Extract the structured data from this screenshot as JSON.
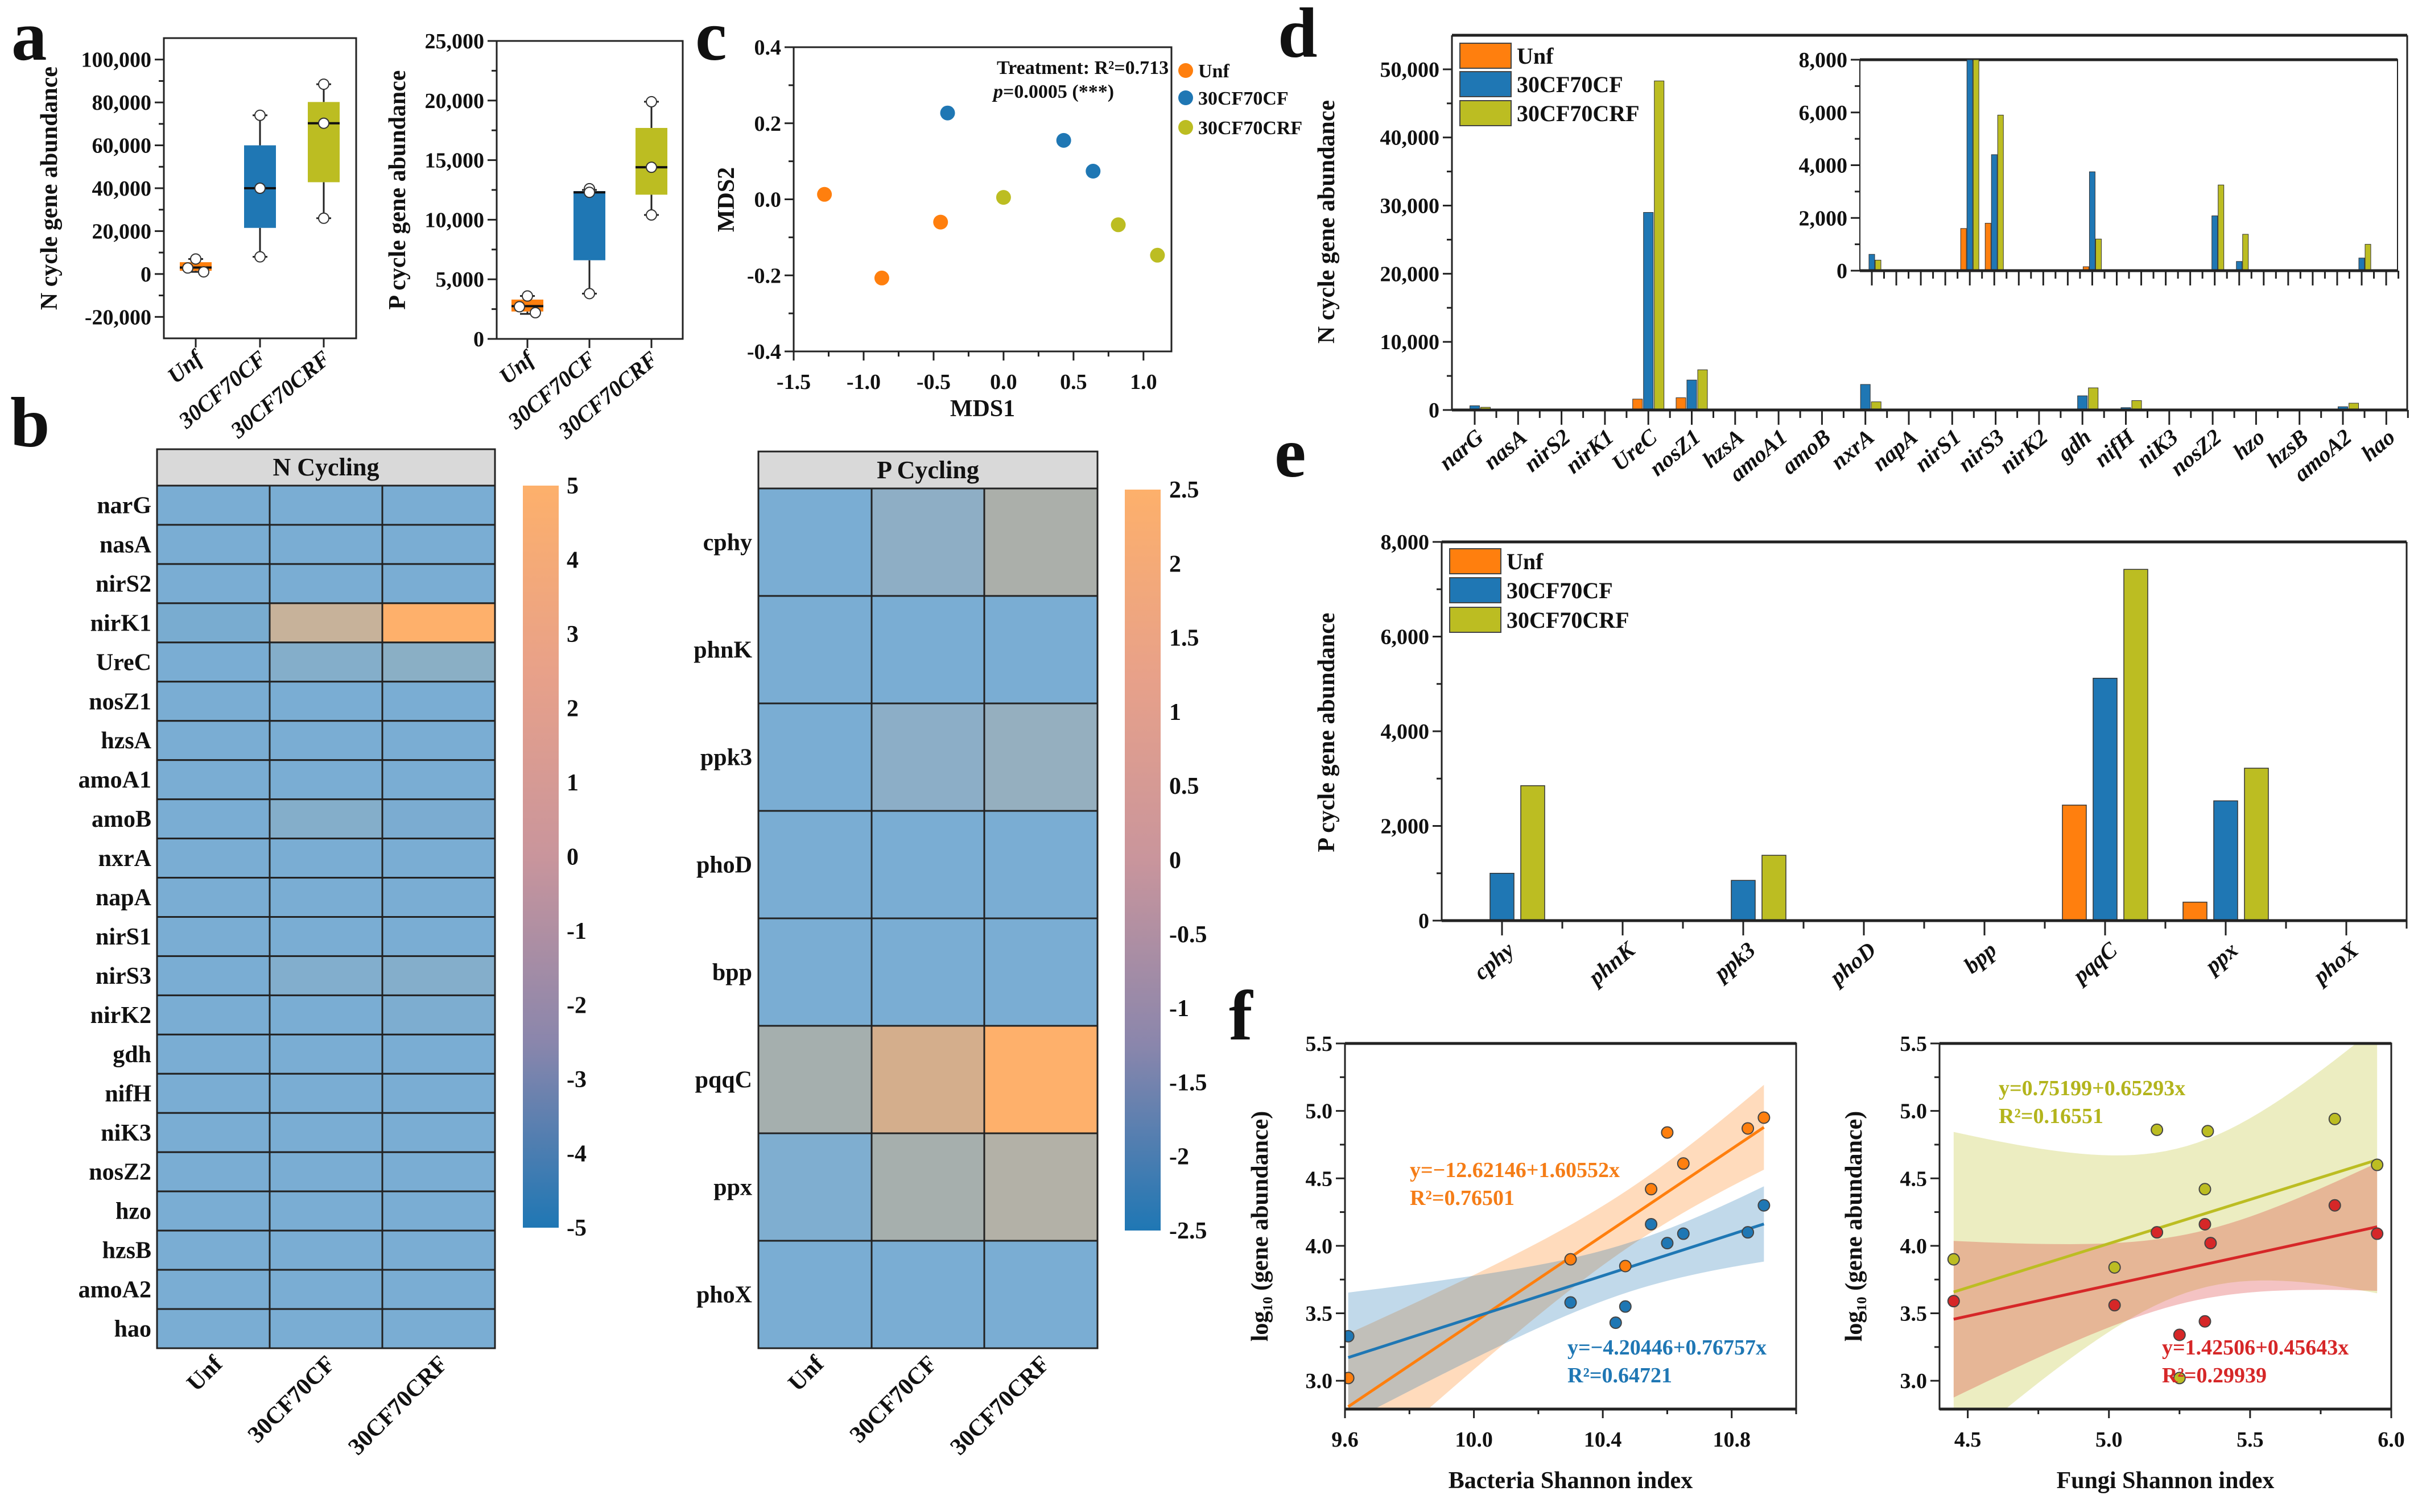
{
  "panel_letters": {
    "a": "a",
    "b": "b",
    "c": "c",
    "d": "d",
    "e": "e",
    "f": "f"
  },
  "colors": {
    "Unf": "#ff7f0e",
    "30CF70CF": "#1f77b4",
    "30CF70CRF": "#bcbd22",
    "fungi_red": "#d62728"
  },
  "chart_data": [
    {
      "id": "a_N",
      "panel": "a",
      "type": "box",
      "ylabel": "N cycle gene abundance",
      "categories": [
        "Unf",
        "30CF70CF",
        "30CF70CRF"
      ],
      "ylim": [
        -30000,
        110000
      ],
      "yticks": [
        -20000,
        0,
        20000,
        40000,
        60000,
        80000,
        100000
      ],
      "ytick_labels": [
        "-20,000",
        "0",
        "20,000",
        "40,000",
        "60,000",
        "80,000",
        "100,000"
      ],
      "boxes": [
        {
          "q1": 1500,
          "median": 3000,
          "q3": 5500,
          "whisker_low": 1000,
          "whisker_high": 7000,
          "points": [
            7000,
            2800,
            1000
          ]
        },
        {
          "q1": 21500,
          "median": 40000,
          "q3": 60000,
          "whisker_low": 8000,
          "whisker_high": 74000,
          "points": [
            74000,
            40000,
            8000
          ]
        },
        {
          "q1": 42800,
          "median": 70300,
          "q3": 80200,
          "whisker_low": 26000,
          "whisker_high": 88500,
          "points": [
            88500,
            70300,
            26000
          ]
        }
      ]
    },
    {
      "id": "a_P",
      "panel": "a",
      "type": "box",
      "ylabel": "P cycle gene abundance",
      "categories": [
        "Unf",
        "30CF70CF",
        "30CF70CRF"
      ],
      "ylim": [
        0,
        25000
      ],
      "yticks": [
        0,
        5000,
        10000,
        15000,
        20000,
        25000
      ],
      "ytick_labels": [
        "0",
        "5,000",
        "10,000",
        "15,000",
        "20,000",
        "25,000"
      ],
      "boxes": [
        {
          "q1": 2300,
          "median": 2750,
          "q3": 3300,
          "whisker_low": 2100,
          "whisker_high": 3600,
          "points": [
            3600,
            2700,
            2200
          ]
        },
        {
          "q1": 6600,
          "median": 12300,
          "q3": 12400,
          "whisker_low": 3800,
          "whisker_high": 12500,
          "points": [
            12600,
            12300,
            3800
          ]
        },
        {
          "q1": 12100,
          "median": 14400,
          "q3": 17700,
          "whisker_low": 10400,
          "whisker_high": 19900,
          "points": [
            19900,
            14400,
            10400
          ]
        }
      ]
    },
    {
      "id": "b_N",
      "panel": "b",
      "type": "heatmap",
      "title": "N Cycling",
      "rows": [
        "narG",
        "nasA",
        "nirS2",
        "nirK1",
        "UreC",
        "nosZ1",
        "hzsA",
        "amoA1",
        "amoB",
        "nxrA",
        "napA",
        "nirS1",
        "nirS3",
        "nirK2",
        "gdh",
        "nifH",
        "niK3",
        "nosZ2",
        "hzo",
        "hzsB",
        "amoA2",
        "hao"
      ],
      "columns": [
        "Unf",
        "30CF70CF",
        "30CF70CRF"
      ],
      "cell_colors": [
        [
          "#7aadd3",
          "#7aadd3",
          "#7aadd3"
        ],
        [
          "#7aadd3",
          "#7aadd3",
          "#7aadd3"
        ],
        [
          "#7aadd3",
          "#7aadd3",
          "#7aadd3"
        ],
        [
          "#79acd0",
          "#c7b29a",
          "#feb06b"
        ],
        [
          "#7aadd3",
          "#84aeca",
          "#8aafc5"
        ],
        [
          "#7aadd3",
          "#7aadd3",
          "#7aadd3"
        ],
        [
          "#7aadd3",
          "#7aadd3",
          "#7aadd3"
        ],
        [
          "#7aadd3",
          "#7aadd3",
          "#7aadd3"
        ],
        [
          "#7aadd3",
          "#84aeca",
          "#7bacd1"
        ],
        [
          "#7aadd3",
          "#7aadd3",
          "#7aadd3"
        ],
        [
          "#7aadd3",
          "#7aadd3",
          "#7aadd3"
        ],
        [
          "#7aadd3",
          "#7aadd3",
          "#7aadd3"
        ],
        [
          "#7aadd3",
          "#82aecd",
          "#84aecb"
        ],
        [
          "#7aadd3",
          "#7aadd3",
          "#7dadd0"
        ],
        [
          "#7aadd3",
          "#7aadd3",
          "#7aadd3"
        ],
        [
          "#7aadd3",
          "#7aadd3",
          "#7aadd3"
        ],
        [
          "#7aadd3",
          "#7aadd3",
          "#7aadd3"
        ],
        [
          "#7aadd3",
          "#7aadd3",
          "#7aadd3"
        ],
        [
          "#7aadd3",
          "#7aadd3",
          "#7aadd3"
        ],
        [
          "#7aadd3",
          "#7aadd3",
          "#7aadd3"
        ],
        [
          "#7aadd3",
          "#7aadd3",
          "#7aadd3"
        ],
        [
          "#7aadd3",
          "#7aadd3",
          "#7aadd3"
        ]
      ],
      "colorbar": {
        "range": [
          -5,
          5
        ],
        "ticks": [
          5,
          4,
          3,
          2,
          1,
          0,
          -1,
          -2,
          -3,
          -4,
          -5
        ],
        "tick_labels": [
          "5",
          "4",
          "3",
          "2",
          "1",
          "0",
          "-1",
          "-2",
          "-3",
          "-4",
          "-5"
        ],
        "colors": [
          "#fdb06b",
          "#e8a189",
          "#c9959c",
          "#8a86ac",
          "#1f77b4"
        ]
      }
    },
    {
      "id": "b_P",
      "panel": "b",
      "type": "heatmap",
      "title": "P Cycling",
      "rows": [
        "cphy",
        "phnK",
        "ppk3",
        "phoD",
        "bpp",
        "pqqC",
        "ppx",
        "phoX"
      ],
      "columns": [
        "Unf",
        "30CF70CF",
        "30CF70CRF"
      ],
      "cell_colors": [
        [
          "#7aadd3",
          "#8eaec5",
          "#abafaa"
        ],
        [
          "#7aadd3",
          "#7aadd3",
          "#7aadd3"
        ],
        [
          "#7aadd3",
          "#8caec7",
          "#95afbf"
        ],
        [
          "#7aadd3",
          "#7aadd3",
          "#7aadd3"
        ],
        [
          "#7aadd3",
          "#7aadd3",
          "#7aadd3"
        ],
        [
          "#a5afae",
          "#d4ae8c",
          "#feb06b"
        ],
        [
          "#7faed0",
          "#a6afad",
          "#b3b1a7"
        ],
        [
          "#7aadd3",
          "#7aadd3",
          "#7aadd3"
        ]
      ],
      "colorbar": {
        "range": [
          -2.5,
          2.5
        ],
        "ticks": [
          2.5,
          2,
          1.5,
          1,
          0.5,
          0,
          -0.5,
          -1,
          -1.5,
          -2,
          -2.5
        ],
        "tick_labels": [
          "2.5",
          "2",
          "1.5",
          "1",
          "0.5",
          "0",
          "-0.5",
          "-1",
          "-1.5",
          "-2",
          "-2.5"
        ],
        "colors": [
          "#fdb06b",
          "#e8a189",
          "#c9959c",
          "#8a86ac",
          "#1f77b4"
        ]
      }
    },
    {
      "id": "c",
      "panel": "c",
      "type": "scatter",
      "xlabel": "MDS1",
      "ylabel": "MDS2",
      "xlim": [
        -1.5,
        1.2
      ],
      "ylim": [
        -0.4,
        0.4
      ],
      "xticks": [
        -1.5,
        -1.0,
        -0.5,
        0.0,
        0.5,
        1.0
      ],
      "xtick_labels": [
        "-1.5",
        "-1.0",
        "-0.5",
        "0.0",
        "0.5",
        "1.0"
      ],
      "yticks": [
        -0.4,
        -0.2,
        0.0,
        0.2,
        0.4
      ],
      "ytick_labels": [
        "-0.4",
        "-0.2",
        "0.0",
        "0.2",
        "0.4"
      ],
      "annotation": {
        "line1": "Treatment: R²=0.713",
        "p_symbol": "p",
        "line2_rest": "=0.0005 (***)"
      },
      "legend_position": "right",
      "series": [
        {
          "name": "Unf",
          "color": "#ff7f0e",
          "points": [
            [
              -1.28,
              0.013
            ],
            [
              -0.87,
              -0.207
            ],
            [
              -0.45,
              -0.06
            ]
          ]
        },
        {
          "name": "30CF70CF",
          "color": "#1f77b4",
          "points": [
            [
              -0.4,
              0.227
            ],
            [
              0.43,
              0.155
            ],
            [
              0.64,
              0.074
            ]
          ]
        },
        {
          "name": "30CF70CRF",
          "color": "#bcbd22",
          "points": [
            [
              0.0,
              0.005
            ],
            [
              0.82,
              -0.067
            ],
            [
              1.1,
              -0.147
            ]
          ]
        }
      ]
    },
    {
      "id": "d",
      "panel": "d",
      "type": "bar",
      "ylabel": "N cycle gene abundance",
      "categories": [
        "narG",
        "nasA",
        "nirS2",
        "nirK1",
        "UreC",
        "nosZ1",
        "hzsA",
        "amoA1",
        "amoB",
        "nxrA",
        "napA",
        "nirS1",
        "nirS3",
        "nirK2",
        "gdh",
        "nifH",
        "niK3",
        "nosZ2",
        "hzo",
        "hzsB",
        "amoA2",
        "hao"
      ],
      "ylim": [
        0,
        55000
      ],
      "yticks": [
        0,
        10000,
        20000,
        30000,
        40000,
        50000
      ],
      "ytick_labels": [
        "0",
        "10,000",
        "20,000",
        "30,000",
        "40,000",
        "50,000"
      ],
      "legend_position": "top-left",
      "inset": {
        "ylim": [
          0,
          8000
        ],
        "yticks": [
          0,
          2000,
          4000,
          6000,
          8000
        ],
        "ytick_labels": [
          "0",
          "2,000",
          "4,000",
          "6,000",
          "8,000"
        ]
      },
      "series": [
        {
          "name": "Unf",
          "color": "#ff7f0e",
          "values": [
            0,
            0,
            0,
            0,
            1600,
            1800,
            0,
            0,
            0,
            150,
            0,
            0,
            0,
            0,
            0,
            0,
            0,
            0,
            0,
            0,
            0,
            0
          ]
        },
        {
          "name": "30CF70CF",
          "color": "#1f77b4",
          "values": [
            620,
            0,
            0,
            0,
            29000,
            4400,
            0,
            0,
            0,
            3750,
            0,
            0,
            0,
            0,
            2080,
            350,
            0,
            0,
            0,
            0,
            480,
            0
          ]
        },
        {
          "name": "30CF70CRF",
          "color": "#bcbd22",
          "values": [
            400,
            0,
            0,
            0,
            48300,
            5900,
            0,
            0,
            0,
            1200,
            0,
            0,
            0,
            0,
            3250,
            1380,
            0,
            0,
            0,
            0,
            1000,
            0
          ]
        }
      ]
    },
    {
      "id": "e",
      "panel": "e",
      "type": "bar",
      "ylabel": "P cycle gene abundance",
      "categories": [
        "cphy",
        "phnK",
        "ppk3",
        "phoD",
        "bpp",
        "pqqC",
        "ppx",
        "phoX"
      ],
      "ylim": [
        0,
        8000
      ],
      "yticks": [
        0,
        2000,
        4000,
        6000,
        8000
      ],
      "ytick_labels": [
        "0",
        "2,000",
        "4,000",
        "6,000",
        "8,000"
      ],
      "legend_position": "top-left",
      "series": [
        {
          "name": "Unf",
          "color": "#ff7f0e",
          "values": [
            0,
            0,
            0,
            0,
            0,
            2440,
            390,
            0
          ]
        },
        {
          "name": "30CF70CF",
          "color": "#1f77b4",
          "values": [
            1000,
            0,
            850,
            0,
            0,
            5120,
            2530,
            0
          ]
        },
        {
          "name": "30CF70CRF",
          "color": "#bcbd22",
          "values": [
            2850,
            0,
            1380,
            0,
            0,
            7420,
            3220,
            0
          ]
        }
      ]
    },
    {
      "id": "f_bacteria",
      "panel": "f",
      "type": "scatter",
      "xlabel": "Bacteria Shannon index",
      "ylabel": "log₁₀ (gene abundance)",
      "xlim": [
        9.6,
        11.0
      ],
      "ylim": [
        2.79,
        5.5
      ],
      "xticks": [
        9.6,
        10.0,
        10.4,
        10.8
      ],
      "xtick_labels": [
        "9.6",
        "10.0",
        "10.4",
        "10.8"
      ],
      "yticks": [
        3.0,
        3.5,
        4.0,
        4.5,
        5.0,
        5.5
      ],
      "ytick_labels": [
        "3.0",
        "3.5",
        "4.0",
        "4.5",
        "5.0",
        "5.5"
      ],
      "series": [
        {
          "color": "#ff7f0e",
          "text_color": "#f57d17",
          "equation": "y=−12.62146+1.60552x",
          "r2_label": "R²=0.76501",
          "intercept": -12.62146,
          "slope": 1.60552,
          "points": [
            [
              9.61,
              3.02
            ],
            [
              10.3,
              3.9
            ],
            [
              10.47,
              3.85
            ],
            [
              10.55,
              4.42
            ],
            [
              10.6,
              4.84
            ],
            [
              10.65,
              4.61
            ],
            [
              10.85,
              4.87
            ],
            [
              10.9,
              4.95
            ]
          ]
        },
        {
          "color": "#1f77b4",
          "text_color": "#1f77b4",
          "equation": "y=−4.20446+0.76757x",
          "r2_label": "R²=0.64721",
          "intercept": -4.20446,
          "slope": 0.76757,
          "points": [
            [
              9.61,
              3.33
            ],
            [
              10.3,
              3.58
            ],
            [
              10.44,
              3.43
            ],
            [
              10.47,
              3.55
            ],
            [
              10.55,
              4.16
            ],
            [
              10.6,
              4.02
            ],
            [
              10.65,
              4.09
            ],
            [
              10.85,
              4.1
            ],
            [
              10.9,
              4.3
            ]
          ]
        }
      ]
    },
    {
      "id": "f_fungi",
      "panel": "f",
      "type": "scatter",
      "xlabel": "Fungi Shannon index",
      "ylabel": "log₁₀ (gene abundance)",
      "xlim": [
        4.4,
        6.0
      ],
      "ylim": [
        2.79,
        5.5
      ],
      "xticks": [
        4.5,
        5.0,
        5.5,
        6.0
      ],
      "xtick_labels": [
        "4.5",
        "5.0",
        "5.5",
        "6.0"
      ],
      "yticks": [
        3.0,
        3.5,
        4.0,
        4.5,
        5.0,
        5.5
      ],
      "ytick_labels": [
        "3.0",
        "3.5",
        "4.0",
        "4.5",
        "5.0",
        "5.5"
      ],
      "series": [
        {
          "color": "#bcbd22",
          "text_color": "#b3b41c",
          "equation": "y=0.75199+0.65293x",
          "r2_label": "R²=0.16551",
          "intercept": 0.75199,
          "slope": 0.65293,
          "points": [
            [
              4.45,
              3.9
            ],
            [
              5.02,
              3.84
            ],
            [
              5.17,
              4.86
            ],
            [
              5.25,
              3.02
            ],
            [
              5.34,
              4.42
            ],
            [
              5.35,
              4.85
            ],
            [
              5.8,
              4.94
            ],
            [
              5.95,
              4.6
            ]
          ]
        },
        {
          "color": "#d62728",
          "text_color": "#d62728",
          "equation": "y=1.42506+0.45643x",
          "r2_label": "R²=0.29939",
          "intercept": 1.42506,
          "slope": 0.45643,
          "points": [
            [
              4.45,
              3.59
            ],
            [
              5.02,
              3.56
            ],
            [
              5.17,
              4.1
            ],
            [
              5.25,
              3.34
            ],
            [
              5.34,
              3.44
            ],
            [
              5.34,
              4.16
            ],
            [
              5.36,
              4.02
            ],
            [
              5.8,
              4.3
            ],
            [
              5.95,
              4.09
            ]
          ]
        }
      ]
    }
  ]
}
